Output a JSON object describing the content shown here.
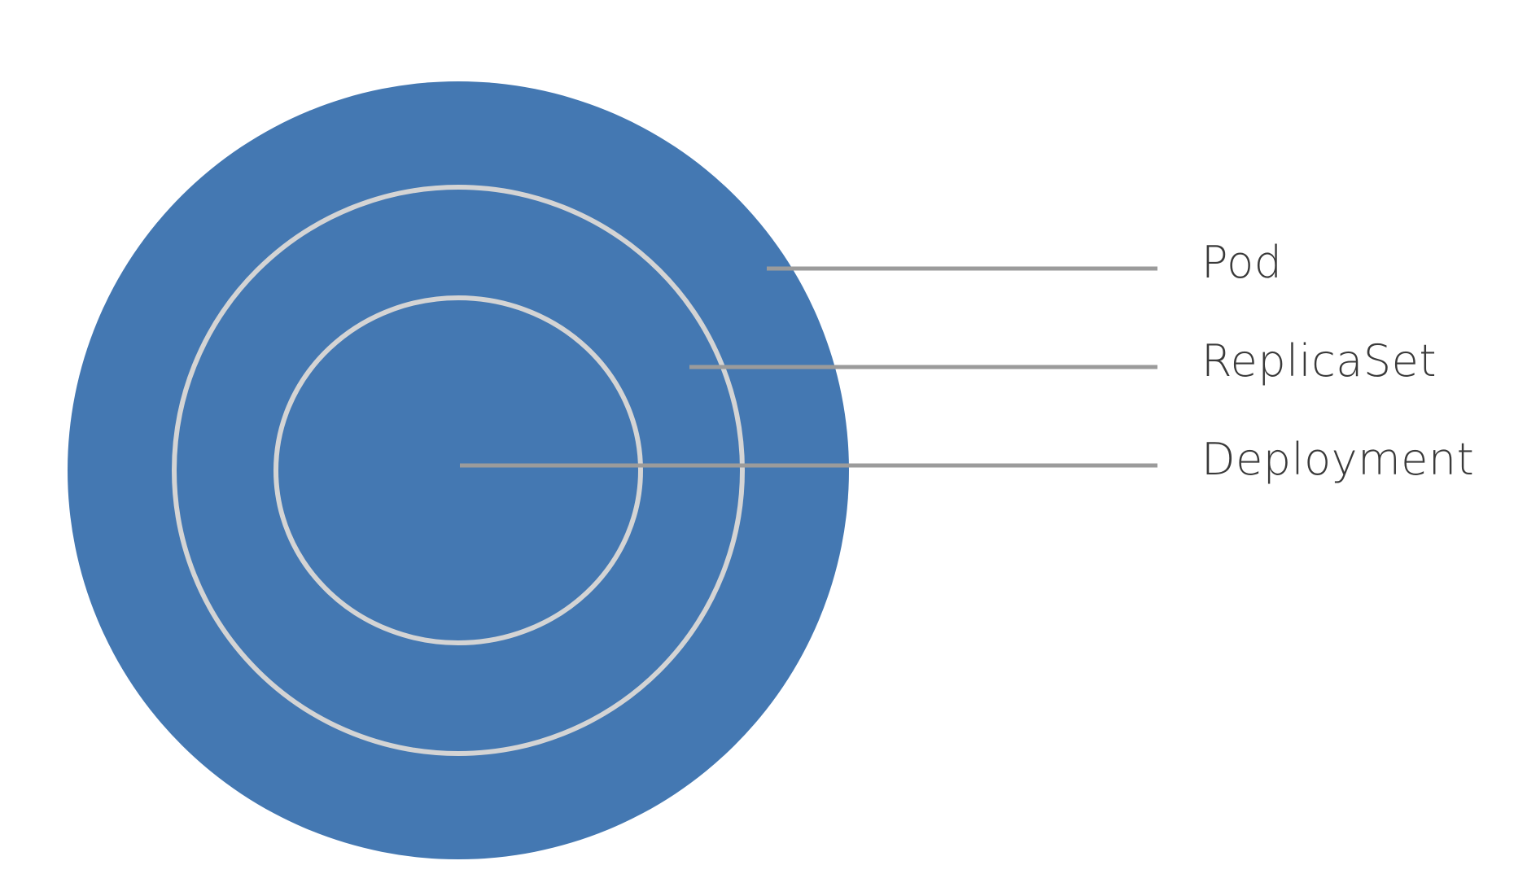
{
  "diagram": {
    "colors": {
      "fill": "#4478b2",
      "ring_stroke": "#d4d4d4",
      "leader_line": "#9b9b9b",
      "label_text": "#3a3a3a",
      "background": "#ffffff"
    },
    "layers": [
      {
        "id": "pod",
        "label": "Pod"
      },
      {
        "id": "replicaset",
        "label": "ReplicaSet"
      },
      {
        "id": "deployment",
        "label": "Deployment"
      }
    ]
  }
}
